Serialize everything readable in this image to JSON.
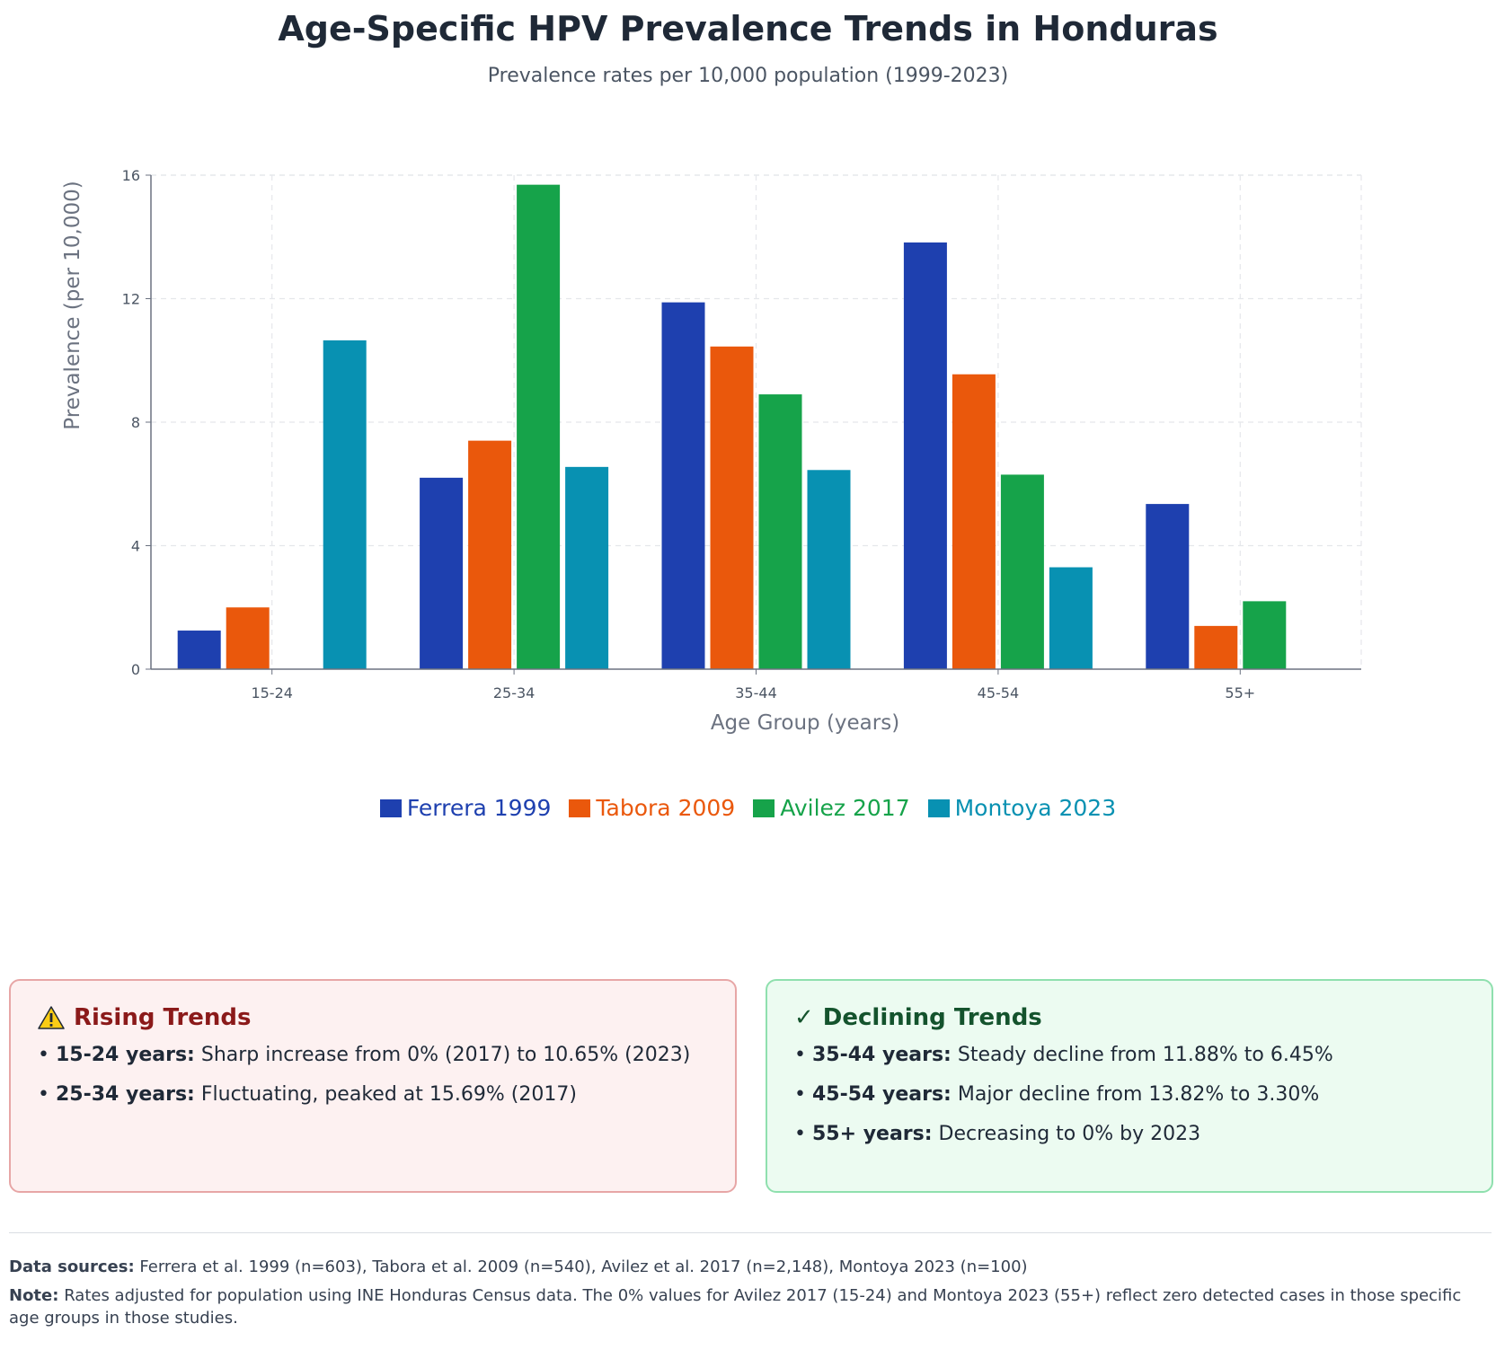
{
  "header": {
    "title": "Age-Specific HPV Prevalence Trends in Honduras",
    "subtitle": "Prevalence rates per 10,000 population (1999-2023)"
  },
  "chart_data": {
    "type": "bar",
    "xlabel": "Age Group (years)",
    "ylabel": "Prevalence (per 10,000)",
    "ylim": [
      0,
      16
    ],
    "yticks": [
      0,
      4,
      8,
      12,
      16
    ],
    "grid": true,
    "legend_position": "bottom-center",
    "categories": [
      "15-24",
      "25-34",
      "35-44",
      "45-54",
      "55+"
    ],
    "series": [
      {
        "name": "Ferrera 1999",
        "color": "#1e40af",
        "values": [
          1.25,
          6.2,
          11.88,
          13.82,
          5.35
        ]
      },
      {
        "name": "Tabora 2009",
        "color": "#ea580c",
        "values": [
          2.0,
          7.4,
          10.45,
          9.55,
          1.4
        ]
      },
      {
        "name": "Avilez 2017",
        "color": "#16a34a",
        "values": [
          0,
          15.69,
          8.9,
          6.3,
          2.2
        ]
      },
      {
        "name": "Montoya 2023",
        "color": "#0891b2",
        "values": [
          10.65,
          6.55,
          6.45,
          3.3,
          0
        ]
      }
    ]
  },
  "rising": {
    "icon": "warning-icon",
    "title": "Rising Trends",
    "items": [
      {
        "label": "15-24 years:",
        "text": "Sharp increase from 0% (2017) to 10.65% (2023)"
      },
      {
        "label": "25-34 years:",
        "text": "Fluctuating, peaked at 15.69% (2017)"
      }
    ]
  },
  "declining": {
    "icon": "check-icon",
    "title": "Declining Trends",
    "items": [
      {
        "label": "35-44 years:",
        "text": "Steady decline from 11.88% to 6.45%"
      },
      {
        "label": "45-54 years:",
        "text": "Major decline from 13.82% to 3.30%"
      },
      {
        "label": "55+ years:",
        "text": "Decreasing to 0% by 2023"
      }
    ]
  },
  "footer": {
    "sources_label": "Data sources:",
    "sources_text": "Ferrera et al. 1999 (n=603), Tabora et al. 2009 (n=540), Avilez et al. 2017 (n=2,148), Montoya 2023 (n=100)",
    "note_label": "Note:",
    "note_text": "Rates adjusted for population using INE Honduras Census data. The 0% values for Avilez 2017 (15-24) and Montoya 2023 (55+) reflect zero detected cases in those specific age groups in those studies."
  }
}
